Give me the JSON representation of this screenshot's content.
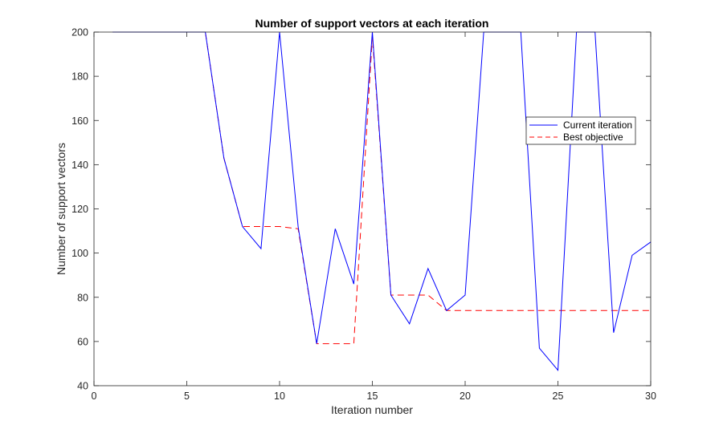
{
  "chart_data": {
    "type": "line",
    "title": "Number of support vectors at each iteration",
    "xlabel": "Iteration number",
    "ylabel": "Number of support vectors",
    "xlim": [
      0,
      30
    ],
    "ylim": [
      40,
      200
    ],
    "xticks": [
      0,
      5,
      10,
      15,
      20,
      25,
      30
    ],
    "yticks": [
      40,
      60,
      80,
      100,
      120,
      140,
      160,
      180,
      200
    ],
    "grid": false,
    "legend_position": "top-right",
    "x": [
      1,
      2,
      3,
      4,
      5,
      6,
      7,
      8,
      9,
      10,
      11,
      12,
      13,
      14,
      15,
      16,
      17,
      18,
      19,
      20,
      21,
      22,
      23,
      24,
      25,
      26,
      27,
      28,
      29,
      30
    ],
    "series": [
      {
        "name": "Current iteration",
        "color": "#0000ff",
        "style": "solid",
        "values": [
          200,
          200,
          200,
          200,
          200,
          200,
          143,
          112,
          102,
          200,
          112,
          59,
          111,
          86,
          200,
          81,
          68,
          93,
          74,
          81,
          200,
          200,
          200,
          57,
          47,
          200,
          200,
          64,
          99,
          105
        ]
      },
      {
        "name": "Best objective",
        "color": "#ff0000",
        "style": "dashed",
        "values": [
          200,
          200,
          200,
          200,
          200,
          200,
          143,
          112,
          112,
          112,
          111,
          59,
          59,
          59,
          198,
          81,
          81,
          81,
          74,
          74,
          74,
          74,
          74,
          74,
          74,
          74,
          74,
          74,
          74,
          74
        ]
      }
    ]
  }
}
